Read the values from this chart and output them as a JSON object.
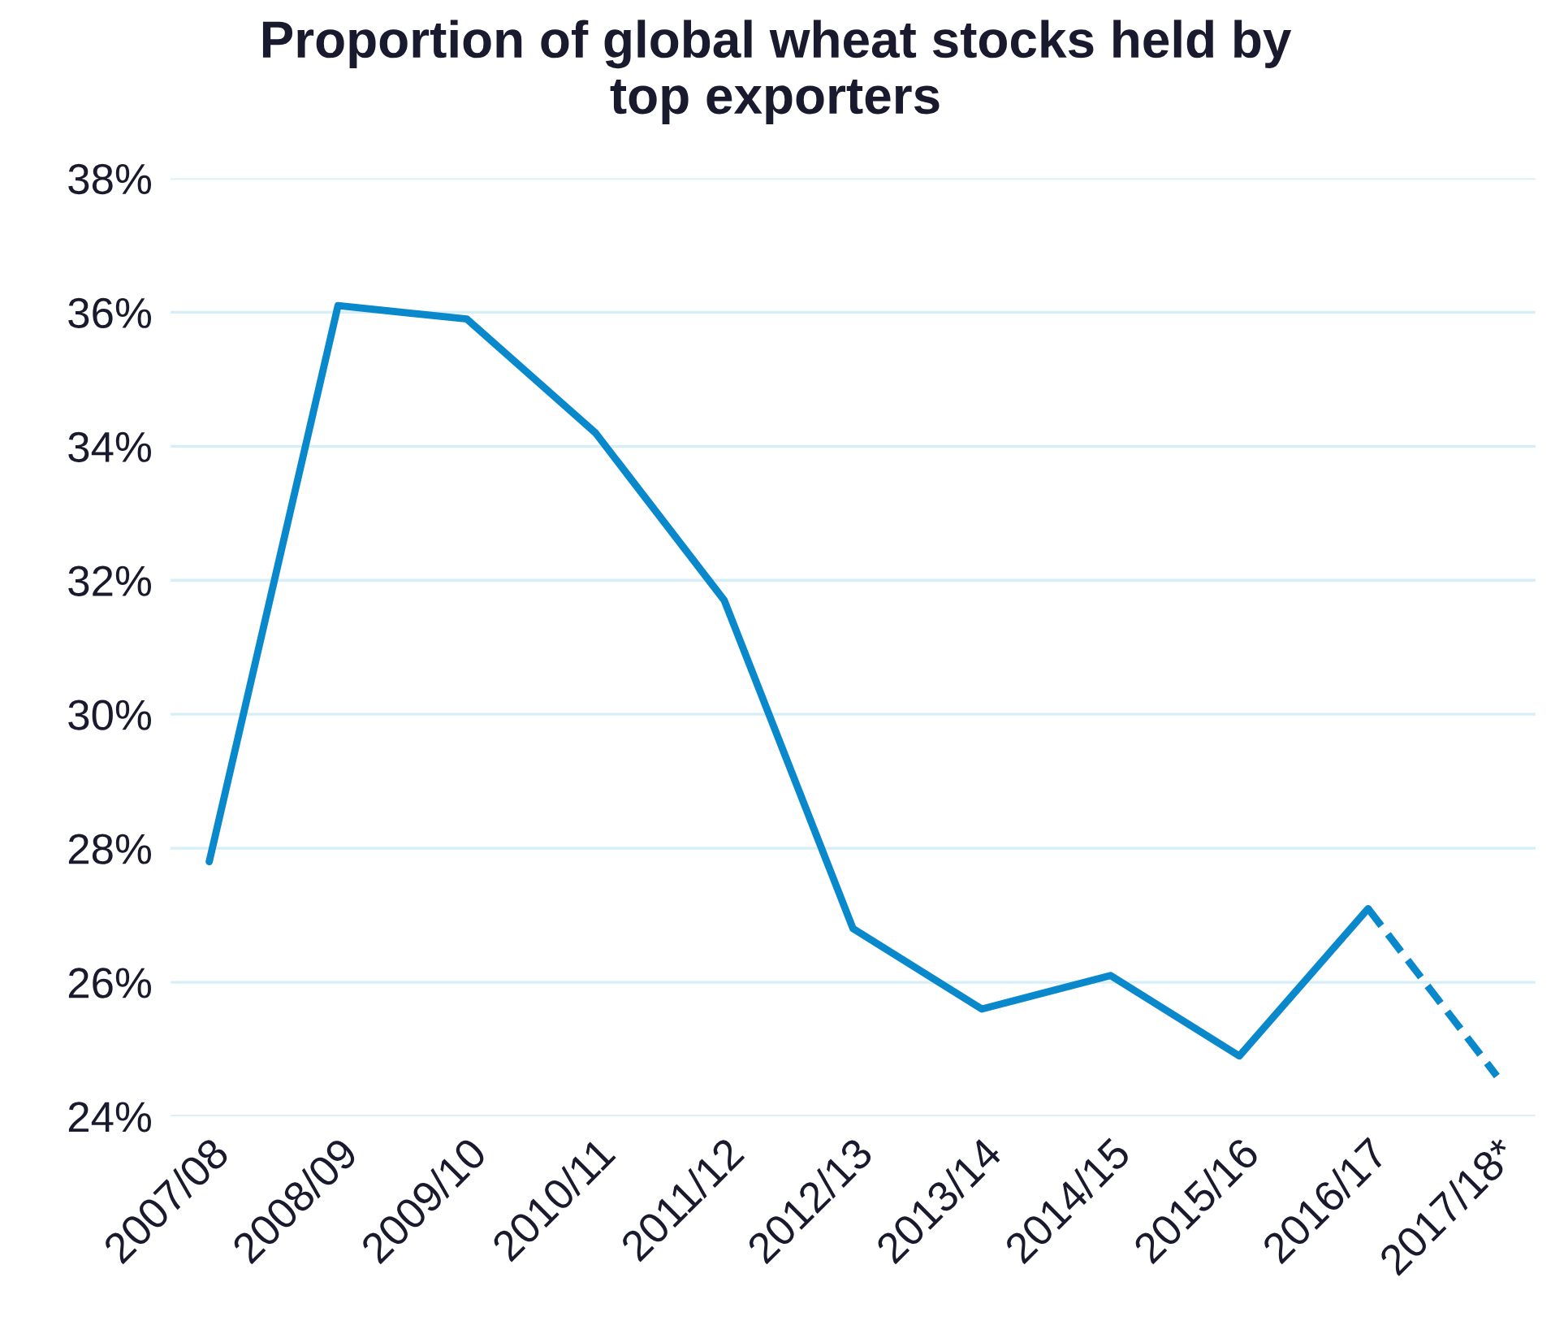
{
  "chart_data": {
    "type": "line",
    "title": "Proportion of global wheat stocks held by\ntop exporters",
    "categories": [
      "2007/08",
      "2008/09",
      "2009/10",
      "2010/11",
      "2011/12",
      "2012/13",
      "2013/14",
      "2014/15",
      "2015/16",
      "2016/17",
      "2017/18*"
    ],
    "series": [
      {
        "color": "#0a88cc",
        "line_style": "solid",
        "values": [
          27.8,
          36.1,
          35.9,
          34.2,
          31.7,
          26.8,
          25.6,
          26.1,
          24.9,
          27.1,
          null
        ]
      },
      {
        "color": "#0a88cc",
        "line_style": "dashed",
        "values": [
          null,
          null,
          null,
          null,
          null,
          null,
          null,
          null,
          null,
          27.1,
          24.6
        ]
      }
    ],
    "ylim": [
      24,
      38
    ],
    "yticks": [
      {
        "value": 24,
        "label": "24%"
      },
      {
        "value": 26,
        "label": "26%"
      },
      {
        "value": 28,
        "label": "28%"
      },
      {
        "value": 30,
        "label": "30%"
      },
      {
        "value": 32,
        "label": "32%"
      },
      {
        "value": 34,
        "label": "34%"
      },
      {
        "value": 36,
        "label": "36%"
      },
      {
        "value": 38,
        "label": "38%"
      }
    ],
    "grid": "y",
    "legend": false
  }
}
